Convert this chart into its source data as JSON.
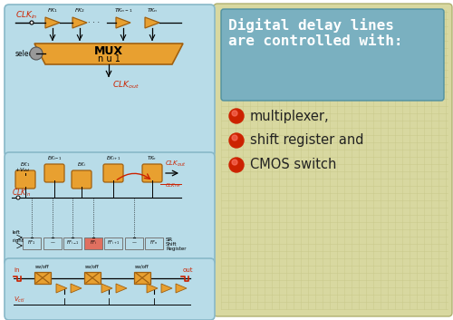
{
  "bg_color": "#ffffff",
  "panel_bg": "#b8dce8",
  "grid_bg": "#d8d8a0",
  "title_box_bg": "#7ab0c0",
  "title_text_line1": "Digital delay lines",
  "title_text_line2": "are controlled with:",
  "title_color": "#ffffff",
  "bullet_items": [
    "multiplexer,",
    "shift register and",
    "CMOS switch"
  ],
  "bullet_color": "#cc2200",
  "text_color": "#222222",
  "orange_color": "#e8a030",
  "orange_edge": "#a06010",
  "red_color": "#cc2200",
  "panel_edge": "#88b8c8",
  "grid_line": "#c8c888",
  "sr_highlight": "#e07060",
  "gray_knob": "#999999"
}
